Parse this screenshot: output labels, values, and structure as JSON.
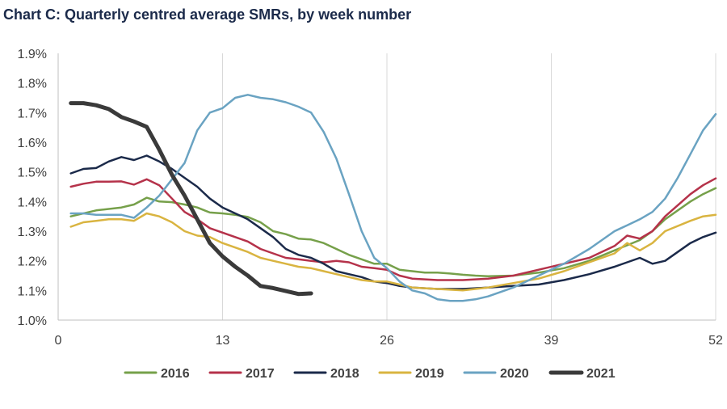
{
  "chart_data": {
    "type": "line",
    "title": "Chart C: Quarterly centred average SMRs, by week number",
    "xlabel": "",
    "ylabel": "",
    "xlim": [
      0,
      52
    ],
    "ylim": [
      1.0,
      1.9
    ],
    "xticks": [
      0,
      13,
      26,
      39,
      52
    ],
    "yticks": [
      "1.0%",
      "1.1%",
      "1.2%",
      "1.3%",
      "1.4%",
      "1.5%",
      "1.6%",
      "1.7%",
      "1.8%",
      "1.9%"
    ],
    "ytick_values": [
      1.0,
      1.1,
      1.2,
      1.3,
      1.4,
      1.5,
      1.6,
      1.7,
      1.8,
      1.9
    ],
    "grid": "vertical",
    "legend": "bottom",
    "series": [
      {
        "name": "2016",
        "color": "#76a04a",
        "x": [
          1,
          3,
          5,
          6,
          7,
          8,
          9,
          10,
          11,
          12,
          13,
          14,
          15,
          16,
          17,
          18,
          19,
          20,
          21,
          22,
          23,
          24,
          25,
          26,
          27,
          28,
          29,
          30,
          31,
          32,
          33,
          34,
          36,
          38,
          40,
          42,
          44,
          46,
          47,
          48,
          50,
          51,
          52
        ],
        "y": [
          1.35,
          1.37,
          1.38,
          1.39,
          1.413,
          1.4,
          1.398,
          1.39,
          1.38,
          1.363,
          1.36,
          1.355,
          1.348,
          1.33,
          1.3,
          1.29,
          1.275,
          1.272,
          1.26,
          1.24,
          1.22,
          1.205,
          1.19,
          1.19,
          1.17,
          1.165,
          1.16,
          1.16,
          1.157,
          1.153,
          1.15,
          1.148,
          1.15,
          1.16,
          1.175,
          1.2,
          1.235,
          1.27,
          1.3,
          1.34,
          1.4,
          1.425,
          1.445
        ]
      },
      {
        "name": "2017",
        "color": "#b5324a",
        "x": [
          1,
          2,
          3,
          4,
          5,
          6,
          7,
          8,
          9,
          10,
          11,
          12,
          13,
          14,
          15,
          16,
          17,
          18,
          19,
          20,
          21,
          22,
          23,
          24,
          25,
          26,
          27,
          28,
          30,
          32,
          34,
          36,
          38,
          40,
          42,
          44,
          45,
          46,
          47,
          48,
          50,
          51,
          52
        ],
        "y": [
          1.45,
          1.46,
          1.467,
          1.467,
          1.468,
          1.457,
          1.475,
          1.455,
          1.41,
          1.365,
          1.34,
          1.31,
          1.295,
          1.28,
          1.265,
          1.24,
          1.225,
          1.21,
          1.205,
          1.2,
          1.195,
          1.2,
          1.195,
          1.18,
          1.175,
          1.17,
          1.15,
          1.14,
          1.135,
          1.135,
          1.14,
          1.15,
          1.17,
          1.19,
          1.21,
          1.25,
          1.285,
          1.275,
          1.3,
          1.35,
          1.425,
          1.455,
          1.478
        ]
      },
      {
        "name": "2018",
        "color": "#1b2a4a",
        "x": [
          1,
          2,
          3,
          4,
          5,
          6,
          7,
          8,
          9,
          10,
          11,
          12,
          13,
          14,
          15,
          16,
          17,
          18,
          19,
          20,
          21,
          22,
          23,
          24,
          25,
          26,
          27,
          28,
          30,
          32,
          34,
          36,
          38,
          40,
          42,
          44,
          45,
          46,
          47,
          48,
          50,
          51,
          52
        ],
        "y": [
          1.495,
          1.51,
          1.513,
          1.535,
          1.55,
          1.54,
          1.555,
          1.535,
          1.51,
          1.48,
          1.45,
          1.41,
          1.38,
          1.36,
          1.34,
          1.31,
          1.28,
          1.24,
          1.22,
          1.21,
          1.19,
          1.165,
          1.155,
          1.145,
          1.13,
          1.125,
          1.115,
          1.11,
          1.105,
          1.105,
          1.11,
          1.115,
          1.12,
          1.135,
          1.155,
          1.18,
          1.195,
          1.21,
          1.19,
          1.2,
          1.26,
          1.28,
          1.295
        ]
      },
      {
        "name": "2019",
        "color": "#d9b440",
        "x": [
          1,
          2,
          3,
          4,
          5,
          6,
          7,
          8,
          9,
          10,
          11,
          12,
          13,
          14,
          15,
          16,
          17,
          18,
          19,
          20,
          21,
          22,
          23,
          24,
          25,
          26,
          27,
          28,
          30,
          32,
          34,
          36,
          38,
          40,
          42,
          44,
          45,
          46,
          47,
          48,
          50,
          51,
          52
        ],
        "y": [
          1.315,
          1.33,
          1.335,
          1.34,
          1.34,
          1.335,
          1.36,
          1.35,
          1.33,
          1.3,
          1.285,
          1.28,
          1.26,
          1.245,
          1.23,
          1.21,
          1.2,
          1.19,
          1.18,
          1.175,
          1.165,
          1.155,
          1.145,
          1.135,
          1.13,
          1.13,
          1.12,
          1.11,
          1.105,
          1.1,
          1.11,
          1.125,
          1.14,
          1.165,
          1.195,
          1.225,
          1.26,
          1.235,
          1.26,
          1.3,
          1.335,
          1.35,
          1.355
        ]
      },
      {
        "name": "2020",
        "color": "#6aa3c2",
        "x": [
          1,
          2,
          3,
          4,
          5,
          6,
          7,
          8,
          9,
          10,
          11,
          12,
          13,
          14,
          15,
          16,
          17,
          18,
          19,
          20,
          21,
          22,
          23,
          24,
          25,
          26,
          27,
          28,
          29,
          30,
          31,
          32,
          33,
          34,
          36,
          38,
          40,
          42,
          44,
          45,
          46,
          47,
          48,
          49,
          50,
          51,
          52
        ],
        "y": [
          1.36,
          1.36,
          1.355,
          1.355,
          1.355,
          1.345,
          1.38,
          1.42,
          1.475,
          1.53,
          1.64,
          1.7,
          1.715,
          1.75,
          1.76,
          1.75,
          1.745,
          1.735,
          1.72,
          1.7,
          1.635,
          1.545,
          1.425,
          1.3,
          1.21,
          1.175,
          1.13,
          1.1,
          1.09,
          1.07,
          1.065,
          1.065,
          1.07,
          1.08,
          1.11,
          1.15,
          1.19,
          1.24,
          1.3,
          1.32,
          1.34,
          1.365,
          1.41,
          1.48,
          1.56,
          1.64,
          1.695
        ]
      },
      {
        "name": "2021",
        "color": "#3a3a3a",
        "x": [
          1,
          2,
          3,
          4,
          5,
          6,
          7,
          8,
          9,
          10,
          11,
          12,
          13,
          14,
          15,
          16,
          17,
          18,
          19,
          20
        ],
        "y": [
          1.732,
          1.732,
          1.725,
          1.712,
          1.685,
          1.67,
          1.652,
          1.575,
          1.49,
          1.42,
          1.34,
          1.26,
          1.215,
          1.18,
          1.15,
          1.115,
          1.108,
          1.098,
          1.088,
          1.09
        ]
      }
    ]
  }
}
